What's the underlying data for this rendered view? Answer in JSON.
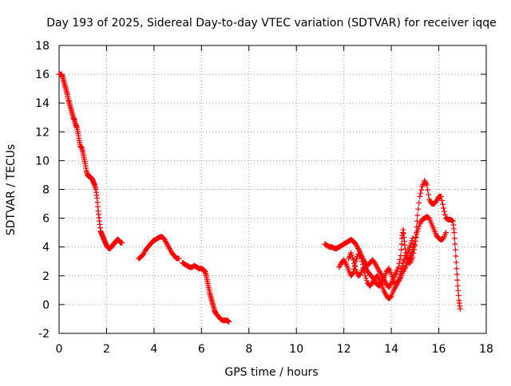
{
  "chart_data": {
    "type": "scatter",
    "title": "Day 193 of 2025, Sidereal Day-to-day VTEC variation (SDTVAR) for receiver iqqe",
    "xlabel": "GPS time / hours",
    "ylabel": "SDTVAR / TECUs",
    "xlim": [
      0,
      18
    ],
    "ylim": [
      -2,
      18
    ],
    "x_ticks": [
      "0",
      "2",
      "4",
      "6",
      "8",
      "10",
      "12",
      "14",
      "16",
      "18"
    ],
    "y_ticks": [
      "-2",
      "0",
      "2",
      "4",
      "6",
      "8",
      "10",
      "12",
      "14",
      "16",
      "18"
    ],
    "grid": true,
    "marker": "+",
    "series_color": "#ff0000",
    "series": [
      {
        "name": "segment-1",
        "points": [
          [
            0.0,
            16.0
          ],
          [
            0.1,
            16.0
          ],
          [
            0.15,
            15.8
          ],
          [
            0.2,
            15.5
          ],
          [
            0.25,
            15.2
          ],
          [
            0.3,
            14.9
          ],
          [
            0.35,
            14.6
          ],
          [
            0.4,
            14.2
          ],
          [
            0.45,
            13.9
          ],
          [
            0.5,
            13.6
          ],
          [
            0.55,
            13.3
          ],
          [
            0.6,
            13.0
          ],
          [
            0.65,
            12.8
          ],
          [
            0.7,
            12.5
          ],
          [
            0.75,
            12.3
          ],
          [
            0.8,
            11.9
          ],
          [
            0.85,
            11.4
          ],
          [
            0.9,
            11.0
          ],
          [
            0.95,
            10.9
          ],
          [
            1.0,
            10.6
          ],
          [
            1.05,
            10.2
          ],
          [
            1.1,
            9.8
          ],
          [
            1.15,
            9.3
          ],
          [
            1.2,
            9.0
          ],
          [
            1.25,
            8.9
          ],
          [
            1.3,
            8.9
          ],
          [
            1.35,
            8.8
          ],
          [
            1.4,
            8.7
          ],
          [
            1.45,
            8.5
          ],
          [
            1.5,
            8.3
          ],
          [
            1.55,
            8.0
          ],
          [
            1.6,
            7.4
          ],
          [
            1.65,
            6.5
          ],
          [
            1.7,
            5.8
          ],
          [
            1.75,
            5.1
          ],
          [
            1.8,
            4.9
          ],
          [
            1.85,
            4.7
          ],
          [
            1.9,
            4.5
          ],
          [
            1.95,
            4.3
          ],
          [
            2.0,
            4.1
          ],
          [
            2.05,
            4.0
          ],
          [
            2.1,
            3.9
          ],
          [
            2.15,
            3.9
          ],
          [
            2.2,
            4.0
          ],
          [
            2.25,
            4.1
          ],
          [
            2.3,
            4.2
          ],
          [
            2.35,
            4.3
          ],
          [
            2.4,
            4.4
          ],
          [
            2.45,
            4.5
          ],
          [
            2.5,
            4.5
          ],
          [
            2.55,
            4.4
          ],
          [
            2.6,
            4.3
          ],
          [
            2.65,
            4.3
          ]
        ]
      },
      {
        "name": "segment-2",
        "points": [
          [
            3.35,
            3.2
          ],
          [
            3.45,
            3.3
          ],
          [
            3.55,
            3.5
          ],
          [
            3.65,
            3.8
          ],
          [
            3.75,
            4.0
          ],
          [
            3.85,
            4.2
          ],
          [
            3.95,
            4.4
          ],
          [
            4.05,
            4.5
          ],
          [
            4.15,
            4.6
          ],
          [
            4.25,
            4.7
          ],
          [
            4.35,
            4.7
          ],
          [
            4.45,
            4.5
          ],
          [
            4.55,
            4.2
          ],
          [
            4.65,
            3.9
          ],
          [
            4.75,
            3.6
          ],
          [
            4.85,
            3.4
          ],
          [
            4.95,
            3.2
          ],
          [
            5.05,
            3.2
          ]
        ]
      },
      {
        "name": "segment-3",
        "points": [
          [
            5.2,
            2.9
          ],
          [
            5.3,
            2.8
          ],
          [
            5.4,
            2.7
          ],
          [
            5.5,
            2.6
          ],
          [
            5.6,
            2.6
          ],
          [
            5.7,
            2.7
          ],
          [
            5.8,
            2.6
          ],
          [
            5.9,
            2.5
          ],
          [
            6.0,
            2.5
          ],
          [
            6.1,
            2.4
          ],
          [
            6.15,
            2.3
          ],
          [
            6.2,
            2.0
          ],
          [
            6.25,
            1.6
          ],
          [
            6.3,
            1.2
          ],
          [
            6.35,
            0.8
          ],
          [
            6.4,
            0.5
          ],
          [
            6.45,
            0.2
          ],
          [
            6.5,
            -0.1
          ],
          [
            6.55,
            -0.4
          ],
          [
            6.6,
            -0.6
          ],
          [
            6.7,
            -0.8
          ],
          [
            6.8,
            -1.0
          ],
          [
            6.9,
            -1.1
          ],
          [
            7.0,
            -1.1
          ],
          [
            7.1,
            -1.1
          ],
          [
            7.15,
            -1.2
          ]
        ]
      },
      {
        "name": "segment-4",
        "points": [
          [
            11.2,
            4.2
          ],
          [
            11.3,
            4.1
          ],
          [
            11.4,
            4.0
          ],
          [
            11.5,
            4.0
          ],
          [
            11.6,
            3.9
          ],
          [
            11.7,
            3.9
          ],
          [
            11.8,
            4.0
          ],
          [
            11.9,
            4.1
          ],
          [
            12.0,
            4.2
          ],
          [
            12.1,
            4.3
          ],
          [
            12.2,
            4.4
          ],
          [
            12.3,
            4.5
          ],
          [
            12.4,
            4.4
          ],
          [
            12.5,
            4.2
          ],
          [
            12.6,
            3.9
          ],
          [
            12.7,
            3.6
          ],
          [
            12.8,
            3.2
          ],
          [
            12.9,
            2.9
          ],
          [
            13.0,
            2.7
          ],
          [
            13.1,
            2.9
          ],
          [
            13.2,
            3.1
          ],
          [
            13.3,
            2.9
          ],
          [
            13.4,
            2.6
          ],
          [
            13.5,
            2.3
          ],
          [
            13.6,
            2.0
          ],
          [
            13.7,
            1.7
          ],
          [
            13.8,
            1.4
          ],
          [
            13.9,
            1.2
          ],
          [
            14.0,
            1.5
          ],
          [
            14.1,
            1.9
          ],
          [
            14.2,
            2.2
          ],
          [
            14.3,
            2.6
          ],
          [
            14.4,
            3.4
          ],
          [
            14.45,
            4.6
          ],
          [
            14.5,
            5.2
          ],
          [
            14.55,
            4.4
          ],
          [
            14.6,
            3.6
          ],
          [
            14.7,
            3.0
          ],
          [
            14.8,
            2.9
          ],
          [
            14.9,
            3.3
          ],
          [
            15.0,
            4.1
          ],
          [
            15.05,
            5.0
          ],
          [
            15.1,
            6.2
          ],
          [
            15.2,
            7.5
          ],
          [
            15.3,
            8.2
          ],
          [
            15.4,
            8.6
          ],
          [
            15.5,
            8.3
          ],
          [
            15.6,
            7.3
          ],
          [
            15.7,
            7.0
          ],
          [
            15.8,
            7.0
          ],
          [
            15.9,
            7.2
          ],
          [
            16.0,
            7.5
          ],
          [
            16.1,
            7.5
          ],
          [
            16.2,
            6.7
          ],
          [
            16.3,
            6.0
          ],
          [
            16.4,
            5.9
          ],
          [
            16.5,
            5.9
          ],
          [
            16.6,
            5.8
          ],
          [
            16.65,
            5.0
          ],
          [
            16.7,
            3.8
          ],
          [
            16.75,
            2.5
          ],
          [
            16.8,
            1.3
          ],
          [
            16.85,
            0.3
          ],
          [
            16.9,
            -0.3
          ]
        ]
      },
      {
        "name": "segment-5",
        "points": [
          [
            11.8,
            2.6
          ],
          [
            11.9,
            2.9
          ],
          [
            12.0,
            3.1
          ],
          [
            12.1,
            2.8
          ],
          [
            12.2,
            2.4
          ],
          [
            12.3,
            2.0
          ],
          [
            12.4,
            2.2
          ],
          [
            12.5,
            3.0
          ],
          [
            12.6,
            3.5
          ],
          [
            12.7,
            3.4
          ],
          [
            12.8,
            2.8
          ],
          [
            12.9,
            2.0
          ],
          [
            13.0,
            1.5
          ],
          [
            13.1,
            1.3
          ],
          [
            13.2,
            1.5
          ],
          [
            13.3,
            1.8
          ],
          [
            13.4,
            2.0
          ],
          [
            13.5,
            1.7
          ],
          [
            13.6,
            1.3
          ],
          [
            13.7,
            0.9
          ],
          [
            13.8,
            0.6
          ],
          [
            13.9,
            0.4
          ],
          [
            14.0,
            0.6
          ],
          [
            14.1,
            1.0
          ],
          [
            14.2,
            1.3
          ],
          [
            14.3,
            1.6
          ],
          [
            14.4,
            1.9
          ],
          [
            14.5,
            2.3
          ],
          [
            14.6,
            2.6
          ],
          [
            14.7,
            3.0
          ],
          [
            14.8,
            3.4
          ],
          [
            14.9,
            3.8
          ],
          [
            15.0,
            4.4
          ],
          [
            15.1,
            5.1
          ],
          [
            15.2,
            5.6
          ],
          [
            15.3,
            5.9
          ],
          [
            15.4,
            6.0
          ],
          [
            15.5,
            6.1
          ],
          [
            15.6,
            6.0
          ],
          [
            15.7,
            5.6
          ],
          [
            15.8,
            5.2
          ],
          [
            15.9,
            4.8
          ],
          [
            16.0,
            4.6
          ],
          [
            16.1,
            4.5
          ],
          [
            16.2,
            4.6
          ],
          [
            16.3,
            5.0
          ]
        ]
      },
      {
        "name": "segment-6",
        "points": [
          [
            12.2,
            3.2
          ],
          [
            12.3,
            3.6
          ],
          [
            12.4,
            3.1
          ],
          [
            12.5,
            2.4
          ],
          [
            12.6,
            2.0
          ],
          [
            12.7,
            2.1
          ],
          [
            12.8,
            2.5
          ],
          [
            12.9,
            2.6
          ],
          [
            13.0,
            2.3
          ],
          [
            13.1,
            2.1
          ],
          [
            13.2,
            1.9
          ],
          [
            13.3,
            1.6
          ],
          [
            13.4,
            1.4
          ],
          [
            13.5,
            1.3
          ],
          [
            13.6,
            1.5
          ],
          [
            13.7,
            1.9
          ],
          [
            13.8,
            2.3
          ],
          [
            13.9,
            2.5
          ],
          [
            14.0,
            2.1
          ],
          [
            14.1,
            1.6
          ],
          [
            14.2,
            1.4
          ],
          [
            14.3,
            1.7
          ],
          [
            14.4,
            2.3
          ],
          [
            14.5,
            2.9
          ],
          [
            14.6,
            3.3
          ],
          [
            14.7,
            3.7
          ],
          [
            14.8,
            4.1
          ],
          [
            14.9,
            4.6
          ]
        ]
      }
    ]
  }
}
